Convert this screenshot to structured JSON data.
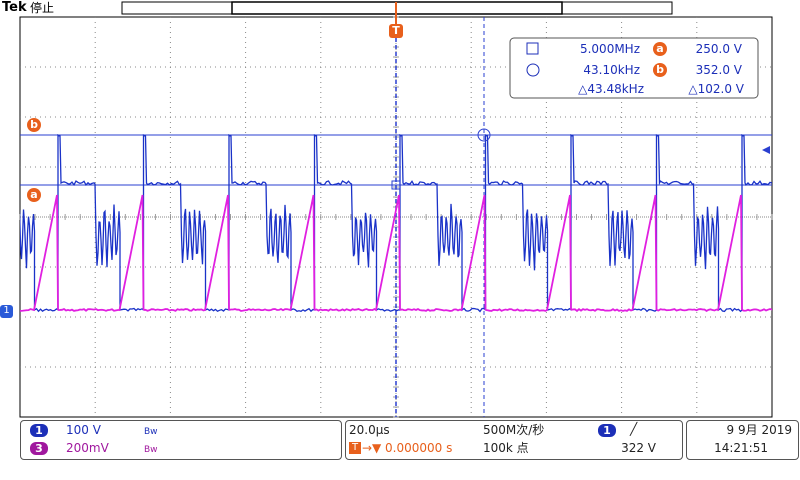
{
  "header": {
    "brand": "Tek",
    "status": "停止"
  },
  "markers": {
    "trigger": "T",
    "cursor_a": "a",
    "cursor_b": "b",
    "channel_1": "1"
  },
  "cursor_readout": {
    "freq_a": "5.000MHz",
    "label_a": "a",
    "value_a": "250.0 V",
    "freq_b": "43.10kHz",
    "label_b": "b",
    "value_b": "352.0 V",
    "delta_freq": "△43.48kHz",
    "delta_value": "△102.0 V"
  },
  "footer": {
    "channels": [
      {
        "number": "1",
        "scale": "100 V",
        "bandwidth": "Bw"
      },
      {
        "number": "3",
        "scale": "200mV",
        "bandwidth": "Bw"
      }
    ],
    "timebase": "20.0µs",
    "trigger_position": "0.000000 s",
    "trigger_icon": "T",
    "sample_rate": "500M次/秒",
    "record_length": "100k 点",
    "trigger_source": "1",
    "trigger_slope": "╱",
    "trigger_level": "322 V",
    "date": "9 9月 2019",
    "time": "14:21:51"
  }
}
